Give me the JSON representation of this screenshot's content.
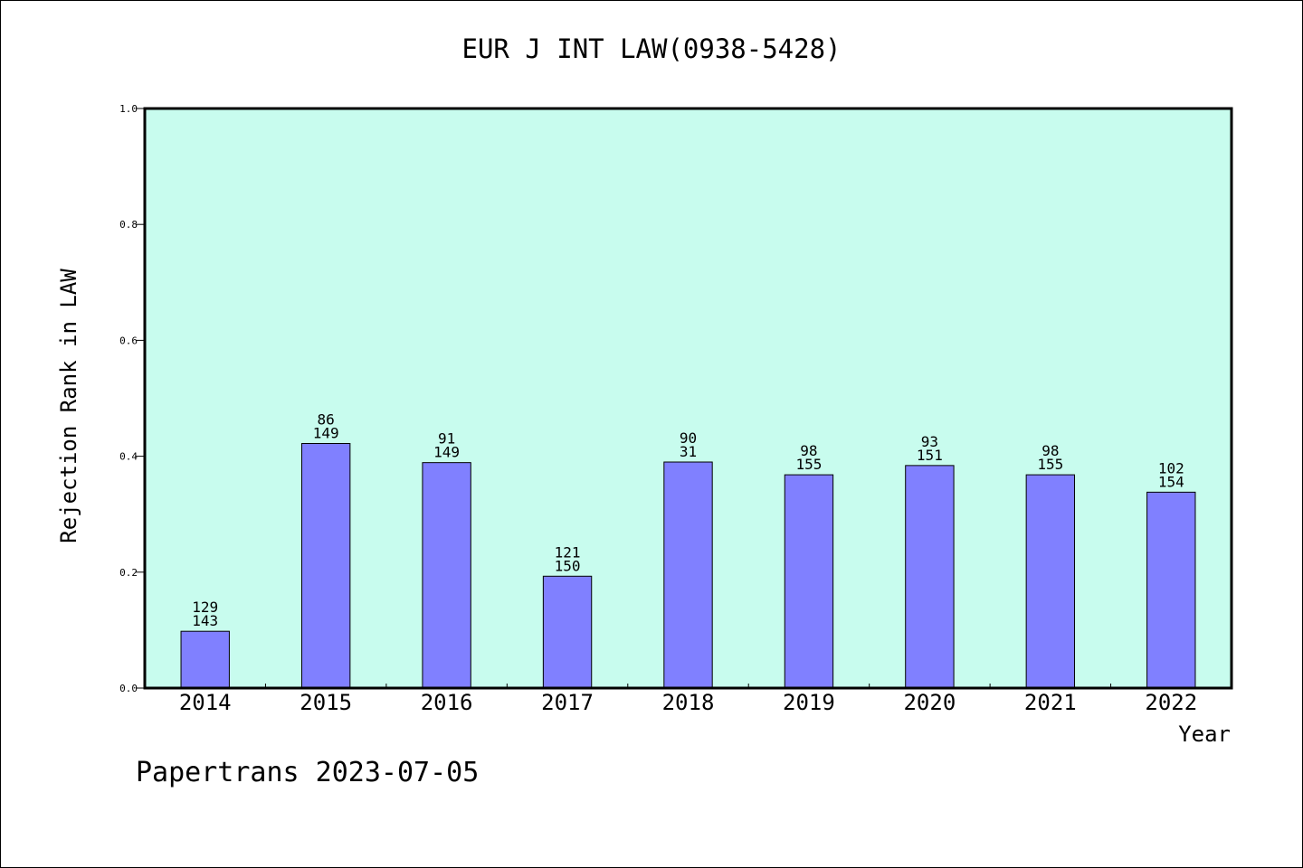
{
  "chart_data": {
    "type": "bar",
    "title": "EUR J INT LAW(0938-5428)",
    "xlabel": "Year",
    "ylabel": "Rejection Rank in LAW",
    "ylim": [
      0.0,
      1.0
    ],
    "yticks": [
      "0.0",
      "0.2",
      "0.4",
      "0.6",
      "0.8",
      "1.0"
    ],
    "categories": [
      "2014",
      "2015",
      "2016",
      "2017",
      "2018",
      "2019",
      "2020",
      "2021",
      "2022"
    ],
    "values": [
      0.098,
      0.422,
      0.389,
      0.193,
      0.39,
      0.368,
      0.384,
      0.368,
      0.338
    ],
    "label_top": [
      "129",
      "86",
      "91",
      "121",
      "90",
      "98",
      "93",
      "98",
      "102"
    ],
    "label_bottom": [
      "143",
      "149",
      "149",
      "150",
      "31",
      "155",
      "151",
      "155",
      "154"
    ],
    "grid": false,
    "legend": "none"
  },
  "footer": "Papertrans 2023-07-05",
  "colors": {
    "plot_background": "#c8fcee",
    "bar_fill": "#8080ff",
    "bar_stroke": "#000000",
    "frame": "#000000"
  }
}
